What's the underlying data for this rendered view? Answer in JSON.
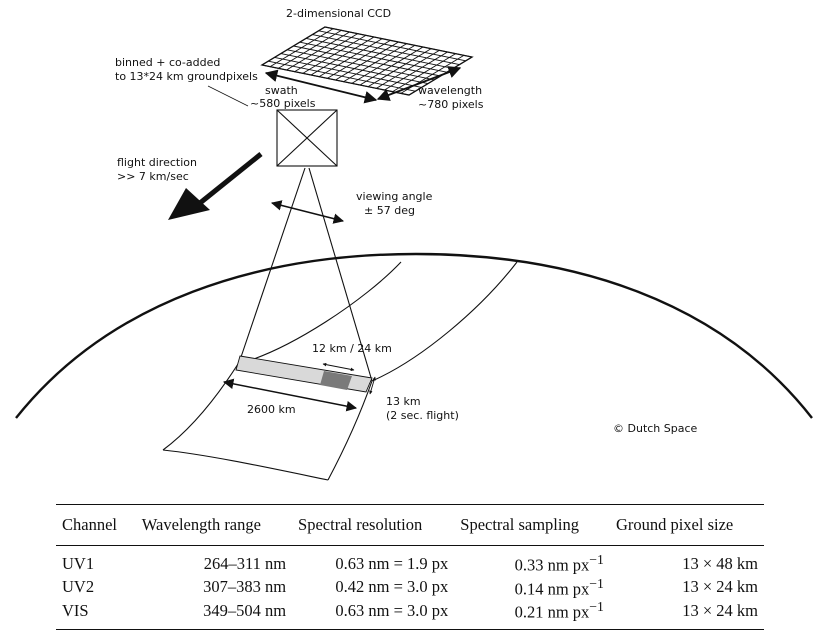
{
  "figure": {
    "ccd_label": "2-dimensional CCD",
    "binned_label_1": "binned + co-added",
    "binned_label_2": "to 13*24 km groundpixels",
    "swath_label_1": "swath",
    "swath_label_2": "~580 pixels",
    "wavelength_label_1": "wavelength",
    "wavelength_label_2": "~780 pixels",
    "flight_label_1": "flight direction",
    "flight_label_2": ">> 7 km/sec",
    "viewing_label_1": "viewing angle",
    "viewing_label_2": "± 57 deg",
    "pixel_size_label": "12 km / 24 km",
    "along_track_label_1": "13 km",
    "along_track_label_2": "(2 sec. flight)",
    "swath_width_label": "2600 km",
    "copyright_label": "© Dutch Space",
    "colors": {
      "line": "#111111",
      "ground_strip": "#d9d9d9",
      "ground_pixel": "#7a7a7a",
      "ccd_fill": "#ffffff"
    }
  },
  "table": {
    "headers": [
      "Channel",
      "Wavelength range",
      "Spectral resolution",
      "Spectral sampling",
      "Ground pixel size"
    ],
    "rows": [
      [
        "UV1",
        "264–311 nm",
        "0.63 nm = 1.9 px",
        "0.33 nm px",
        "13 × 48 km"
      ],
      [
        "UV2",
        "307–383 nm",
        "0.42 nm = 3.0 px",
        "0.14 nm px",
        "13 × 24 km"
      ],
      [
        "VIS",
        "349–504 nm",
        "0.63 nm = 3.0 px",
        "0.21 nm px",
        "13 × 24 km"
      ]
    ],
    "sampling_exponent": "−1"
  }
}
